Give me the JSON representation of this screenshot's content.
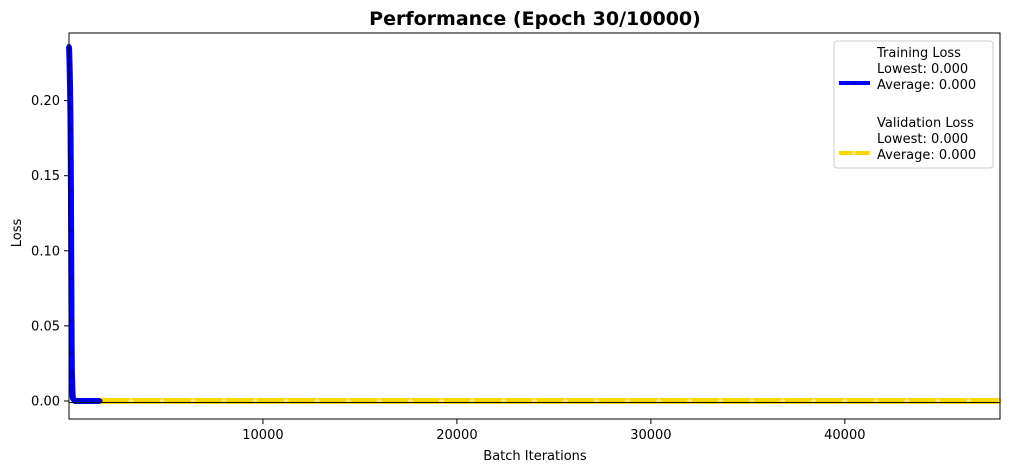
{
  "chart_data": {
    "type": "line",
    "title": "Performance (Epoch 30/10000)",
    "xlabel": "Batch Iterations",
    "ylabel": "Loss",
    "xlim": [
      0,
      48000
    ],
    "ylim": [
      -0.012,
      0.245
    ],
    "x_ticks": [
      10000,
      20000,
      30000,
      40000
    ],
    "y_ticks": [
      0.0,
      0.05,
      0.1,
      0.15,
      0.2
    ],
    "x_tick_labels": [
      "10000",
      "20000",
      "30000",
      "40000"
    ],
    "y_tick_labels": [
      "0.00",
      "0.05",
      "0.10",
      "0.15",
      "0.20"
    ],
    "grid": false,
    "legend_position": "top-right",
    "series": [
      {
        "name": "Training Loss",
        "color": "#0000ff",
        "legend_lines": [
          "Training Loss",
          "Lowest: 0.000",
          "Average: 0.000"
        ],
        "x": [
          0,
          10,
          20,
          30,
          40,
          50,
          60,
          70,
          80,
          90,
          100,
          110,
          120,
          130,
          140,
          150,
          160,
          170,
          180,
          190,
          200,
          300,
          500,
          800,
          1200,
          1600
        ],
        "y": [
          0.236,
          0.233,
          0.229,
          0.224,
          0.218,
          0.212,
          0.205,
          0.195,
          0.181,
          0.162,
          0.141,
          0.114,
          0.082,
          0.054,
          0.032,
          0.019,
          0.016,
          0.01,
          0.006,
          0.003,
          0.002,
          0.0,
          0.0,
          0.0,
          0.0,
          0.0
        ]
      },
      {
        "name": "Validation Loss",
        "color": "#ffd700",
        "legend_lines": [
          "Validation Loss",
          "Lowest: 0.000",
          "Average: 0.000"
        ],
        "x": [
          1600,
          3200,
          4800,
          6400,
          8000,
          9600,
          11200,
          12800,
          14400,
          16000,
          17600,
          19200,
          20800,
          22400,
          24000,
          25600,
          27200,
          28800,
          30400,
          32000,
          33600,
          35200,
          36800,
          38400,
          40000,
          41600,
          43200,
          44800,
          46400,
          48000
        ],
        "y": [
          0.0,
          0.0,
          0.0,
          0.0,
          0.0,
          0.0,
          0.0,
          0.0,
          0.0,
          0.0,
          0.0,
          0.0,
          0.0,
          0.0,
          0.0,
          0.0,
          0.0,
          0.0,
          0.0,
          0.0,
          0.0,
          0.0,
          0.0,
          0.0,
          0.0,
          0.0,
          0.0,
          0.0,
          0.0,
          0.0
        ]
      }
    ]
  }
}
